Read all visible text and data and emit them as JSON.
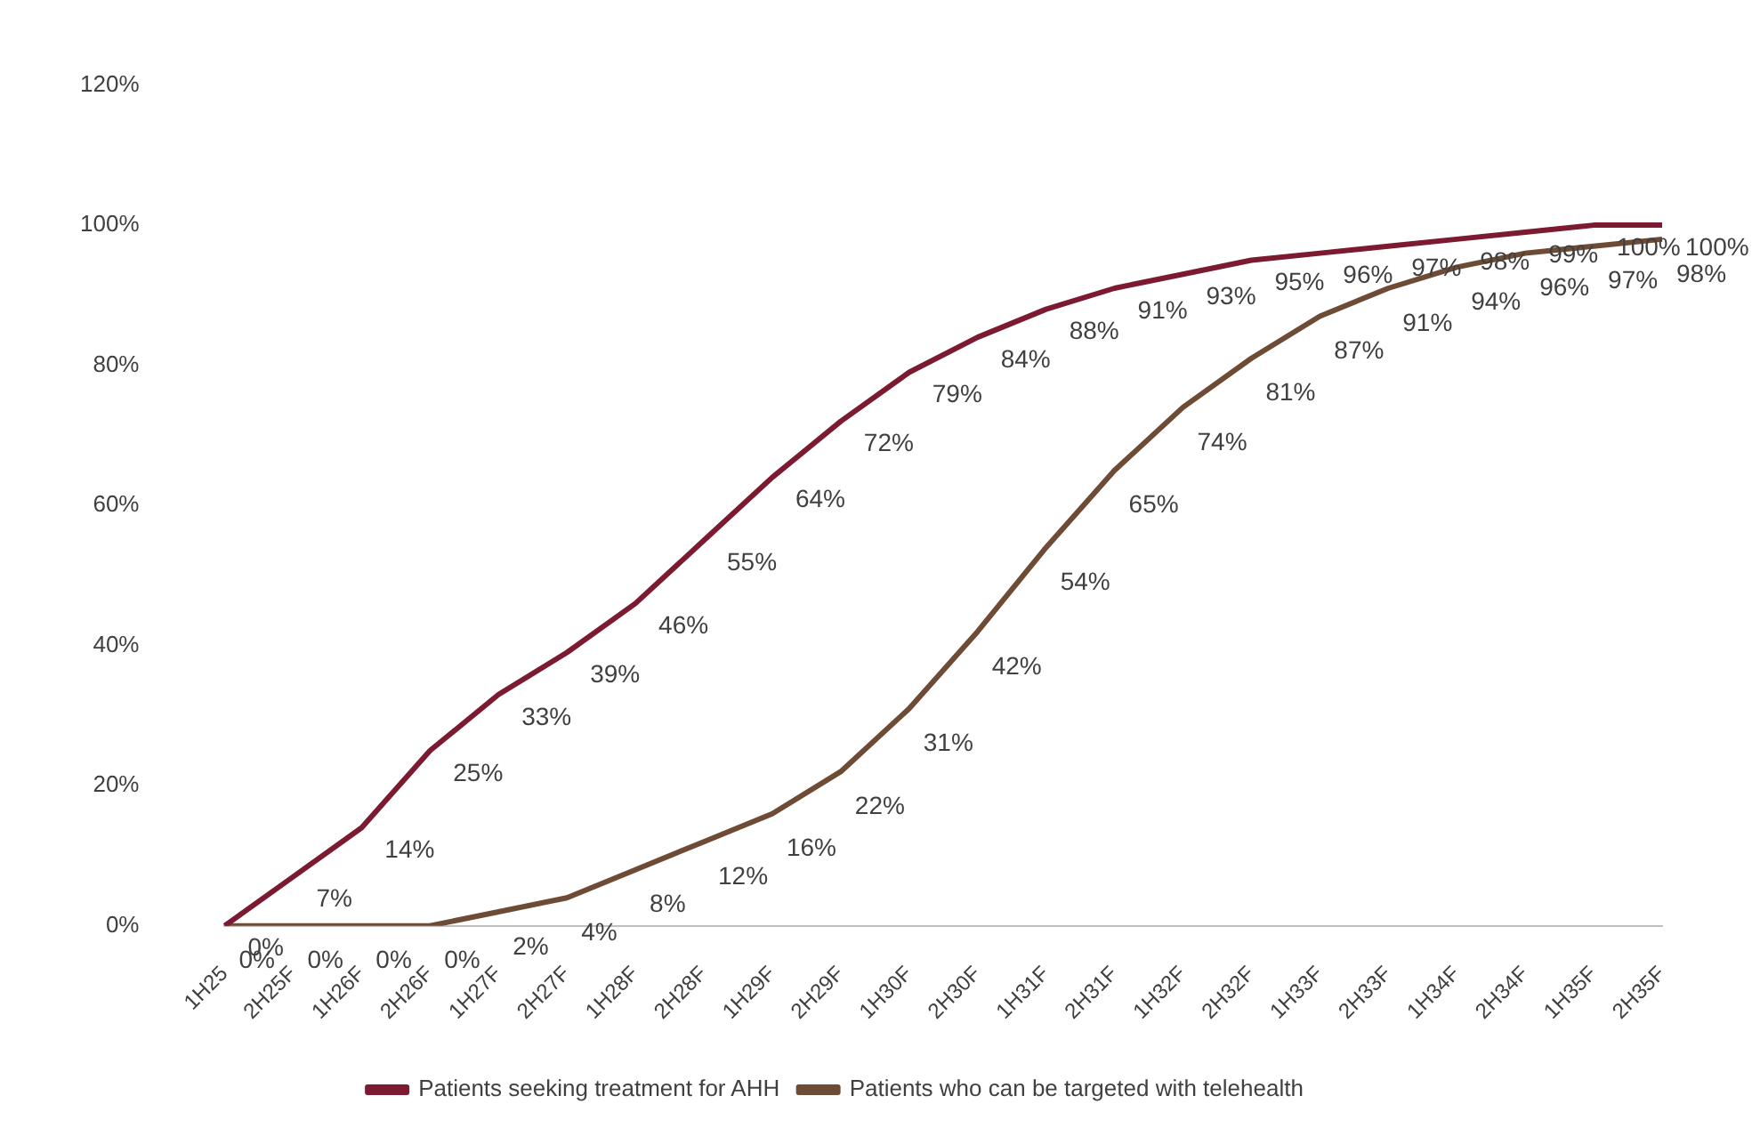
{
  "chart_data": {
    "type": "line",
    "categories": [
      "1H25",
      "2H25F",
      "1H26F",
      "2H26F",
      "1H27F",
      "2H27F",
      "1H28F",
      "2H28F",
      "1H29F",
      "2H29F",
      "1H30F",
      "2H30F",
      "1H31F",
      "2H31F",
      "1H32F",
      "2H32F",
      "1H33F",
      "2H33F",
      "1H34F",
      "2H34F",
      "1H35F",
      "2H35F"
    ],
    "series": [
      {
        "name": "Patients seeking treatment for AHH",
        "color": "#7b1a30",
        "values": [
          0,
          7,
          14,
          25,
          33,
          39,
          46,
          55,
          64,
          72,
          79,
          84,
          88,
          91,
          93,
          95,
          96,
          97,
          98,
          99,
          100,
          100
        ],
        "value_labels": [
          "0%",
          "7%",
          "14%",
          "25%",
          "33%",
          "39%",
          "46%",
          "55%",
          "64%",
          "72%",
          "79%",
          "84%",
          "88%",
          "91%",
          "93%",
          "95%",
          "96%",
          "97%",
          "98%",
          "99%",
          "100%",
          "100%"
        ]
      },
      {
        "name": "Patients who can be targeted with telehealth",
        "color": "#6e4b34",
        "values": [
          0,
          0,
          0,
          0,
          2,
          4,
          8,
          12,
          16,
          22,
          31,
          42,
          54,
          65,
          74,
          81,
          87,
          91,
          94,
          96,
          97,
          98
        ],
        "value_labels": [
          "0%",
          "0%",
          "0%",
          "0%",
          "2%",
          "4%",
          "8%",
          "12%",
          "16%",
          "22%",
          "31%",
          "42%",
          "54%",
          "65%",
          "74%",
          "81%",
          "87%",
          "91%",
          "94%",
          "96%",
          "97%",
          "98%"
        ]
      }
    ],
    "ylim": [
      0,
      120
    ],
    "yticks": [
      {
        "value": 0,
        "label": "0%"
      },
      {
        "value": 20,
        "label": "20%"
      },
      {
        "value": 40,
        "label": "40%"
      },
      {
        "value": 60,
        "label": "60%"
      },
      {
        "value": 80,
        "label": "80%"
      },
      {
        "value": 100,
        "label": "100%"
      },
      {
        "value": 120,
        "label": "120%"
      }
    ],
    "data_labels": true,
    "grid": false,
    "legend": "bottom",
    "marker": "none",
    "line_style": "solid"
  }
}
